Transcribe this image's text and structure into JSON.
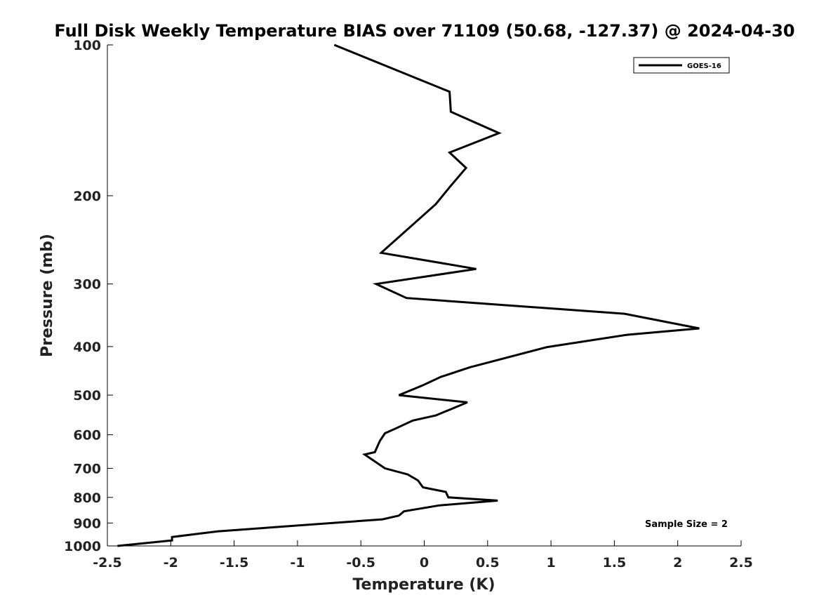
{
  "chart_data": {
    "type": "line",
    "title": "Full Disk Weekly Temperature BIAS over 71109 (50.68, -127.37) @ 2024-04-30",
    "xlabel": "Temperature (K)",
    "ylabel": "Pressure (mb)",
    "xlim": [
      -2.5,
      2.5
    ],
    "ylim": [
      1000,
      100
    ],
    "y_scale": "log",
    "x_ticks": [
      -2.5,
      -2,
      -1.5,
      -1,
      -0.5,
      0,
      0.5,
      1,
      1.5,
      2,
      2.5
    ],
    "x_tick_labels": [
      "-2.5",
      "-2",
      "-1.5",
      "-1",
      "-0.5",
      "0",
      "0.5",
      "1",
      "1.5",
      "2",
      "2.5"
    ],
    "y_ticks": [
      100,
      200,
      300,
      400,
      500,
      600,
      700,
      800,
      900,
      1000
    ],
    "y_tick_labels": [
      "100",
      "200",
      "300",
      "400",
      "500",
      "600",
      "700",
      "800",
      "900",
      "1000"
    ],
    "grid": false,
    "legend": {
      "placement": "top-right"
    },
    "annotation": "Sample Size = 2",
    "series": [
      {
        "name": "GOES-16",
        "color": "#000000",
        "x": [
          -0.71,
          0.2,
          0.21,
          0.59,
          0.2,
          0.33,
          0.21,
          0.09,
          -0.34,
          0.41,
          -0.38,
          -0.14,
          1.58,
          2.17,
          1.6,
          0.97,
          0.36,
          0.13,
          -0.02,
          -0.2,
          0.34,
          0.09,
          -0.09,
          -0.22,
          -0.31,
          -0.35,
          -0.39,
          -0.47,
          -0.31,
          -0.13,
          -0.05,
          -0.01,
          0.17,
          0.19,
          0.58,
          0.12,
          -0.16,
          -0.2,
          -0.33,
          -1.63,
          -1.99,
          -1.99,
          -2.42
        ],
        "y": [
          100,
          124,
          136,
          150,
          164,
          176,
          191,
          208,
          260,
          280,
          300,
          320,
          344,
          368,
          379,
          401,
          440,
          460,
          479,
          500,
          517,
          549,
          562,
          582,
          596,
          617,
          650,
          657,
          700,
          720,
          740,
          764,
          780,
          800,
          812,
          830,
          853,
          870,
          885,
          935,
          960,
          975,
          1000
        ]
      }
    ]
  }
}
